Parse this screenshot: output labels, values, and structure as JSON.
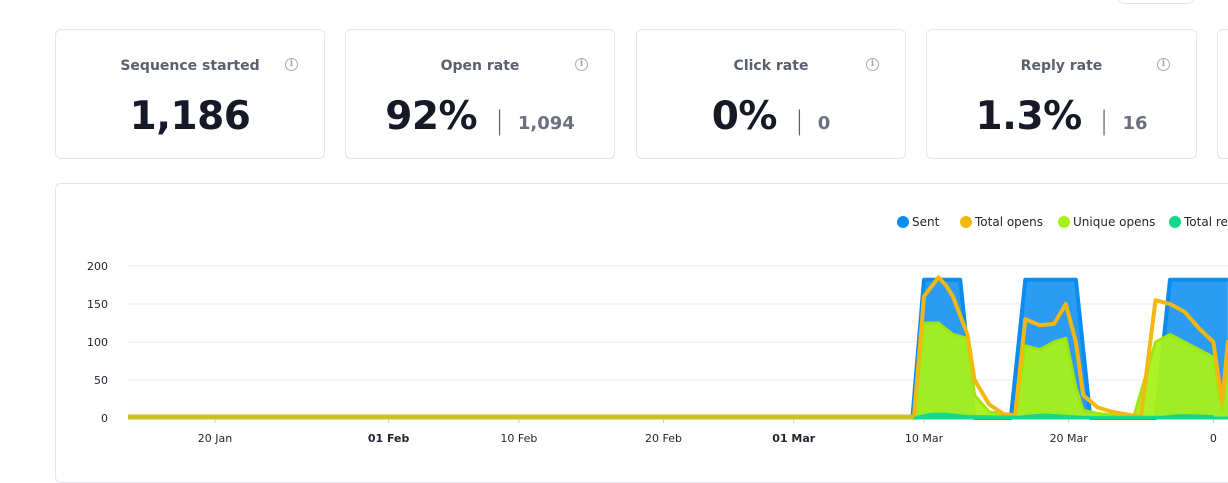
{
  "cards": [
    {
      "title": "Sequence started",
      "value": "1,186",
      "sub": ""
    },
    {
      "title": "Open rate",
      "value": "92%",
      "sub": "1,094"
    },
    {
      "title": "Click rate",
      "value": "0%",
      "sub": "0"
    },
    {
      "title": "Reply rate",
      "value": "1.3%",
      "sub": "16"
    }
  ],
  "chart_data": {
    "type": "area",
    "legend": [
      "Sent",
      "Total opens",
      "Unique opens",
      "Total rep"
    ],
    "legend_placement": "top-right",
    "colors": {
      "sent": "#0a8cf0",
      "total_opens": "#f4b710",
      "unique_opens": "#a6f11a",
      "total_replies": "#13d98c"
    },
    "yticks": [
      "0",
      "50",
      "100",
      "150",
      "200"
    ],
    "ylim": [
      0,
      200
    ],
    "xticks": [
      {
        "label": "20 Jan",
        "bold": false,
        "day": 7
      },
      {
        "label": "01 Feb",
        "bold": true,
        "day": 19
      },
      {
        "label": "10 Feb",
        "bold": false,
        "day": 28
      },
      {
        "label": "20 Feb",
        "bold": false,
        "day": 38
      },
      {
        "label": "01 Mar",
        "bold": true,
        "day": 47
      },
      {
        "label": "10 Mar",
        "bold": false,
        "day": 56
      },
      {
        "label": "20 Mar",
        "bold": false,
        "day": 66
      },
      {
        "label": "0",
        "bold": false,
        "day": 76
      }
    ],
    "grid": true,
    "series": [
      {
        "name": "Sent",
        "x": [
          55.2,
          56,
          57.5,
          58.5,
          59.5,
          62,
          63,
          65,
          66.5,
          67.5,
          69,
          72,
          73,
          75,
          76.5,
          77
        ],
        "values": [
          0,
          182,
          182,
          182,
          0,
          0,
          182,
          182,
          182,
          0,
          0,
          0,
          182,
          182,
          182,
          182
        ]
      },
      {
        "name": "Total opens",
        "x": [
          55.3,
          56,
          57,
          57.5,
          58,
          59,
          59.5,
          60.5,
          61.5,
          62.3,
          63,
          64,
          65,
          65.8,
          66.5,
          67,
          68,
          69,
          70.5,
          71,
          72,
          73,
          74,
          75,
          76,
          76.6,
          77
        ],
        "values": [
          0,
          160,
          185,
          175,
          160,
          110,
          50,
          18,
          5,
          4,
          130,
          122,
          124,
          150,
          100,
          30,
          14,
          8,
          3,
          2,
          155,
          150,
          140,
          118,
          100,
          20,
          100
        ]
      },
      {
        "name": "Unique opens",
        "x": [
          55.3,
          56,
          57,
          58,
          59,
          59.5,
          60.5,
          62.3,
          63,
          64,
          65,
          65.8,
          66.5,
          67,
          68,
          69,
          70.5,
          72,
          73,
          74,
          75,
          76,
          76.6,
          77
        ],
        "values": [
          0,
          125,
          125,
          110,
          105,
          30,
          8,
          3,
          95,
          90,
          100,
          105,
          40,
          10,
          6,
          4,
          2,
          100,
          110,
          100,
          90,
          80,
          10,
          80
        ]
      },
      {
        "name": "Total rep",
        "x": [
          55.5,
          56.5,
          57.5,
          59,
          62.5,
          63.5,
          64.5,
          66,
          67,
          72.5,
          73.5,
          74.5,
          76
        ],
        "values": [
          1,
          5,
          5,
          2,
          1,
          3,
          4,
          2,
          1,
          1,
          3,
          3,
          2
        ]
      }
    ]
  }
}
